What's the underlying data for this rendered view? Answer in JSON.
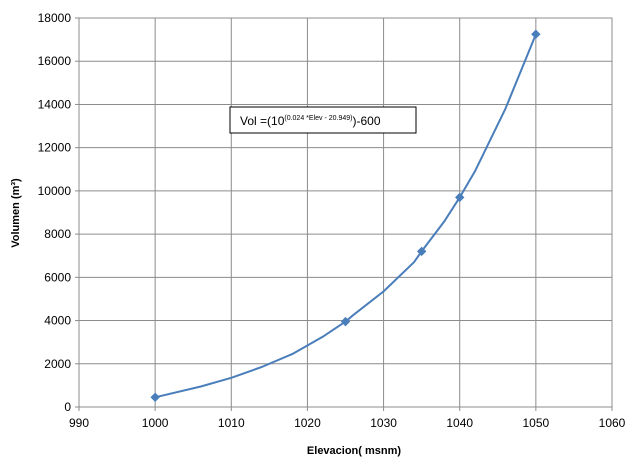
{
  "chart_data": {
    "type": "scatter",
    "xlabel": "Elevacion( msnm)",
    "ylabel": "Volumen (m³)",
    "xlim": [
      990,
      1060
    ],
    "ylim": [
      0,
      18000
    ],
    "xticks": [
      990,
      1000,
      1010,
      1020,
      1030,
      1040,
      1050,
      1060
    ],
    "yticks": [
      0,
      2000,
      4000,
      6000,
      8000,
      10000,
      12000,
      14000,
      16000,
      18000
    ],
    "grid": true,
    "legend": "none",
    "line_color": "#4a7ebb",
    "marker": "diamond",
    "curve": {
      "x": [
        1000,
        1006,
        1010,
        1014,
        1018,
        1022,
        1025,
        1026,
        1030,
        1034,
        1035,
        1038,
        1040,
        1042,
        1046,
        1050
      ],
      "y": [
        450,
        950,
        1350,
        1850,
        2450,
        3250,
        3950,
        4250,
        5350,
        6700,
        7200,
        8600,
        9700,
        10900,
        13800,
        17250
      ]
    },
    "markers": {
      "x": [
        1000,
        1025,
        1035,
        1040,
        1050
      ],
      "y": [
        450,
        3950,
        7200,
        9700,
        17250
      ]
    },
    "annotation": {
      "prefix": "Vol =(10",
      "exponent": "(0.024 *Elev - 20.949)",
      "suffix": ")-600"
    }
  }
}
